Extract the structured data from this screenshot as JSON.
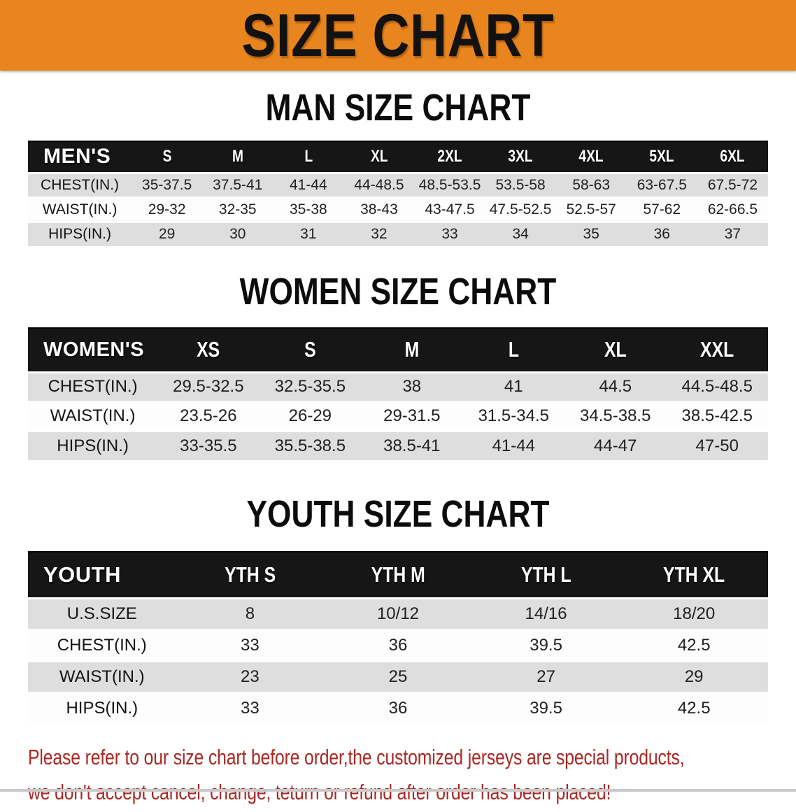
{
  "banner": {
    "title": "SIZE CHART",
    "bg_color": "#E8851F"
  },
  "colors": {
    "header_bar": "#161616",
    "row_stripe": "#DEDEDE",
    "disclaimer_red": "#A92823"
  },
  "sections": [
    {
      "heading": "MAN SIZE CHART",
      "table": {
        "header_label": "MEN'S",
        "sizes": [
          "S",
          "M",
          "L",
          "XL",
          "2XL",
          "3XL",
          "4XL",
          "5XL",
          "6XL"
        ],
        "rows": [
          {
            "label": "CHEST(IN.)",
            "values": [
              "35-37.5",
              "37.5-41",
              "41-44",
              "44-48.5",
              "48.5-53.5",
              "53.5-58",
              "58-63",
              "63-67.5",
              "67.5-72"
            ]
          },
          {
            "label": "WAIST(IN.)",
            "values": [
              "29-32",
              "32-35",
              "35-38",
              "38-43",
              "43-47.5",
              "47.5-52.5",
              "52.5-57",
              "57-62",
              "62-66.5"
            ]
          },
          {
            "label": "HIPS(IN.)",
            "values": [
              "29",
              "30",
              "31",
              "32",
              "33",
              "34",
              "35",
              "36",
              "37"
            ]
          }
        ]
      }
    },
    {
      "heading": "WOMEN SIZE CHART",
      "table": {
        "header_label": "WOMEN'S",
        "sizes": [
          "XS",
          "S",
          "M",
          "L",
          "XL",
          "XXL"
        ],
        "rows": [
          {
            "label": "CHEST(IN.)",
            "values": [
              "29.5-32.5",
              "32.5-35.5",
              "38",
              "41",
              "44.5",
              "44.5-48.5"
            ]
          },
          {
            "label": "WAIST(IN.)",
            "values": [
              "23.5-26",
              "26-29",
              "29-31.5",
              "31.5-34.5",
              "34.5-38.5",
              "38.5-42.5"
            ]
          },
          {
            "label": "HIPS(IN.)",
            "values": [
              "33-35.5",
              "35.5-38.5",
              "38.5-41",
              "41-44",
              "44-47",
              "47-50"
            ]
          }
        ]
      }
    },
    {
      "heading": "YOUTH SIZE CHART",
      "table": {
        "header_label": "YOUTH",
        "sizes": [
          "YTH S",
          "YTH M",
          "YTH L",
          "YTH XL"
        ],
        "rows": [
          {
            "label": "U.S.SIZE",
            "values": [
              "8",
              "10/12",
              "14/16",
              "18/20"
            ]
          },
          {
            "label": "CHEST(IN.)",
            "values": [
              "33",
              "36",
              "39.5",
              "42.5"
            ]
          },
          {
            "label": "WAIST(IN.)",
            "values": [
              "23",
              "25",
              "27",
              "29"
            ]
          },
          {
            "label": "HIPS(IN.)",
            "values": [
              "33",
              "36",
              "39.5",
              "42.5"
            ]
          }
        ]
      }
    }
  ],
  "disclaimer": {
    "line1": "Please refer to our size chart before order,the customized jerseys are special products,",
    "line2": "we don't accept cancel, change, teturn or refund after order has been placed!"
  }
}
